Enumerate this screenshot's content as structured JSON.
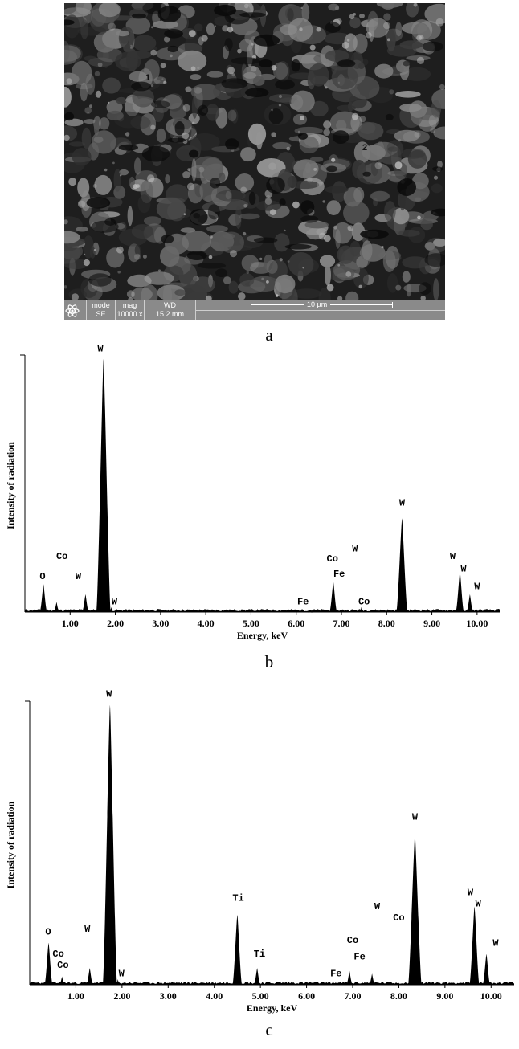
{
  "sem": {
    "markers": [
      "1",
      "2"
    ],
    "info_bar": {
      "col_mode_header": "mode",
      "col_mode_value": "SE",
      "col_mag_header": "mag",
      "col_mag_value": "10000 x",
      "col_wd_header": "WD",
      "col_wd_value": "15.2 mm",
      "scale_label": "10 µm"
    },
    "icon": "atom-icon"
  },
  "captions": {
    "a": "a",
    "b": "b",
    "c": "c"
  },
  "chart_data": [
    {
      "type": "line",
      "panel": "b",
      "xlabel": "Energy, keV",
      "ylabel": "Intensity of radiation",
      "xlim": [
        0,
        10.5
      ],
      "ylim": [
        0,
        100
      ],
      "x_ticks": [
        "1.00",
        "2.00",
        "3.00",
        "4.00",
        "5.00",
        "6.00",
        "7.00",
        "8.00",
        "9.00",
        "10.00",
        "1"
      ],
      "peaks": [
        {
          "x": 0.41,
          "y": 11
        },
        {
          "x": 0.7,
          "y": 4
        },
        {
          "x": 1.34,
          "y": 7
        },
        {
          "x": 1.74,
          "y": 100
        },
        {
          "x": 1.91,
          "y": 2
        },
        {
          "x": 6.31,
          "y": 1
        },
        {
          "x": 6.82,
          "y": 12
        },
        {
          "x": 7.44,
          "y": 2
        },
        {
          "x": 8.34,
          "y": 37
        },
        {
          "x": 9.62,
          "y": 16
        },
        {
          "x": 9.84,
          "y": 7
        }
      ],
      "annotations": [
        {
          "text": "O",
          "x": 0.39,
          "y": 13
        },
        {
          "text": "Co",
          "x": 0.82,
          "y": 21
        },
        {
          "text": "W",
          "x": 1.18,
          "y": 13
        },
        {
          "text": "W",
          "x": 1.67,
          "y": 103
        },
        {
          "text": "W",
          "x": 1.98,
          "y": 3
        },
        {
          "text": "Fe",
          "x": 6.15,
          "y": 3
        },
        {
          "text": "Co",
          "x": 6.8,
          "y": 20
        },
        {
          "text": "Fe",
          "x": 6.95,
          "y": 14
        },
        {
          "text": "W",
          "x": 7.3,
          "y": 24
        },
        {
          "text": "Co",
          "x": 7.5,
          "y": 3
        },
        {
          "text": "W",
          "x": 8.34,
          "y": 42
        },
        {
          "text": "W",
          "x": 9.46,
          "y": 21
        },
        {
          "text": "W",
          "x": 9.7,
          "y": 16
        },
        {
          "text": "W",
          "x": 10.0,
          "y": 9
        }
      ]
    },
    {
      "type": "line",
      "panel": "c",
      "xlabel": "Energy, keV",
      "ylabel": "Intensity of radiation",
      "xlim": [
        0,
        10.5
      ],
      "ylim": [
        0,
        100
      ],
      "x_ticks": [
        "1.00",
        "2.00",
        "3.00",
        "4.00",
        "5.00",
        "6.00",
        "7.00",
        "8.00",
        "9.00",
        "10.00"
      ],
      "peaks": [
        {
          "x": 0.41,
          "y": 15
        },
        {
          "x": 0.7,
          "y": 3
        },
        {
          "x": 1.3,
          "y": 6
        },
        {
          "x": 1.74,
          "y": 100
        },
        {
          "x": 1.91,
          "y": 2
        },
        {
          "x": 4.5,
          "y": 25
        },
        {
          "x": 4.93,
          "y": 6
        },
        {
          "x": 6.93,
          "y": 5
        },
        {
          "x": 7.42,
          "y": 4
        },
        {
          "x": 8.35,
          "y": 54
        },
        {
          "x": 9.64,
          "y": 28
        },
        {
          "x": 9.9,
          "y": 11
        }
      ],
      "annotations": [
        {
          "text": "O",
          "x": 0.4,
          "y": 18
        },
        {
          "text": "Co",
          "x": 0.62,
          "y": 10
        },
        {
          "text": "Co",
          "x": 0.72,
          "y": 6
        },
        {
          "text": "W",
          "x": 1.25,
          "y": 19
        },
        {
          "text": "W",
          "x": 1.72,
          "y": 103
        },
        {
          "text": "W",
          "x": 1.99,
          "y": 3
        },
        {
          "text": "Ti",
          "x": 4.52,
          "y": 30
        },
        {
          "text": "Ti",
          "x": 4.98,
          "y": 10
        },
        {
          "text": "Fe",
          "x": 6.64,
          "y": 3
        },
        {
          "text": "Co",
          "x": 7.0,
          "y": 15
        },
        {
          "text": "Fe",
          "x": 7.15,
          "y": 9
        },
        {
          "text": "W",
          "x": 7.53,
          "y": 27
        },
        {
          "text": "Co",
          "x": 8.0,
          "y": 23
        },
        {
          "text": "W",
          "x": 8.35,
          "y": 59
        },
        {
          "text": "W",
          "x": 9.55,
          "y": 32
        },
        {
          "text": "W",
          "x": 9.72,
          "y": 28
        },
        {
          "text": "W",
          "x": 10.1,
          "y": 14
        }
      ]
    }
  ]
}
